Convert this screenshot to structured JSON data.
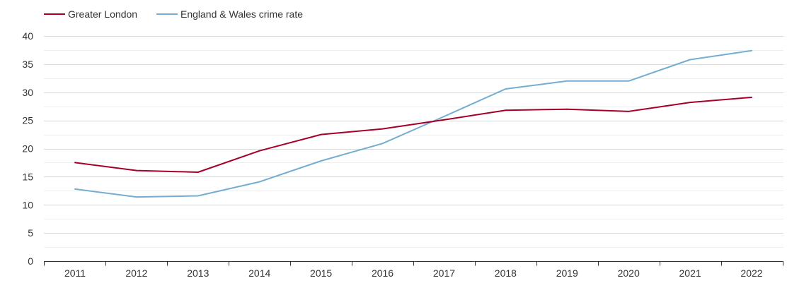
{
  "chart_data": {
    "type": "line",
    "title": "",
    "xlabel": "",
    "ylabel": "",
    "categories": [
      "2011",
      "2012",
      "2013",
      "2014",
      "2015",
      "2016",
      "2017",
      "2018",
      "2019",
      "2020",
      "2021",
      "2022"
    ],
    "ylim": [
      0,
      40
    ],
    "yticks": [
      0,
      5,
      10,
      15,
      20,
      25,
      30,
      35,
      40
    ],
    "grid": true,
    "minor_grid": true,
    "legend_position": "top-left",
    "series": [
      {
        "name": "Greater London",
        "color": "#a50026",
        "values": [
          17.5,
          16.1,
          15.8,
          19.6,
          22.5,
          23.5,
          25.1,
          26.8,
          27.0,
          26.6,
          28.2,
          29.1
        ]
      },
      {
        "name": "England & Wales crime rate",
        "color": "#74add1",
        "values": [
          12.8,
          11.4,
          11.6,
          14.1,
          17.8,
          20.9,
          25.7,
          30.6,
          32.0,
          32.0,
          35.8,
          37.4
        ]
      }
    ]
  }
}
